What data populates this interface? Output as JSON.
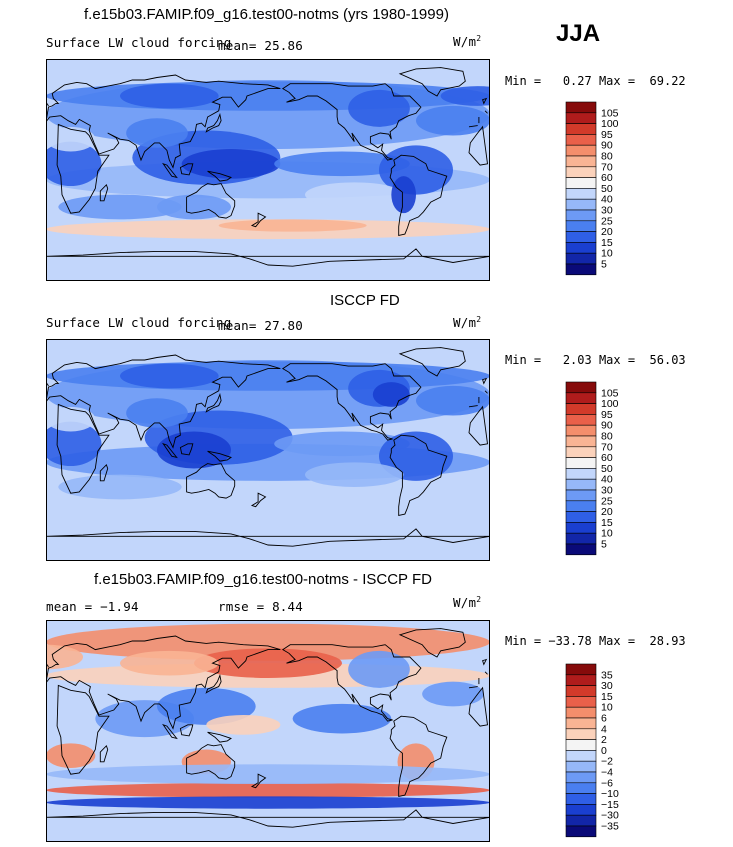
{
  "season": "JJA",
  "panels": [
    {
      "title": "f.e15b03.FAMIP.f09_g16.test00-notms (yrs 1980-1999)",
      "variable": "Surface LW cloud forcing",
      "mean_text": "mean=  25.86",
      "units": "W/m",
      "units_exp": "2",
      "min_label": "Min =",
      "min_value": "0.27",
      "max_label": "Max =",
      "max_value": "69.22"
    },
    {
      "title": "ISCCP FD",
      "variable": "Surface LW cloud forcing",
      "mean_text": "mean=  27.80",
      "units": "W/m",
      "units_exp": "2",
      "min_label": "Min =",
      "min_value": "2.03",
      "max_label": "Max =",
      "max_value": "56.03"
    },
    {
      "title": "f.e15b03.FAMIP.f09_g16.test00-notms - ISCCP FD",
      "mean_text": "mean =  −1.94",
      "rmse_text": "rmse =   8.44",
      "units": "W/m",
      "units_exp": "2",
      "min_label": "Min =",
      "min_value": "−33.78",
      "max_label": "Max =",
      "max_value": "28.93"
    }
  ],
  "chart_data": [
    {
      "type": "heatmap",
      "title": "f.e15b03.FAMIP.f09_g16.test00-notms (yrs 1980-1999)",
      "subtitle": "Surface LW cloud forcing",
      "season": "JJA",
      "units": "W/m2",
      "mean": 25.86,
      "min": 0.27,
      "max": 69.22,
      "colorbar_levels": [
        5,
        10,
        15,
        20,
        25,
        30,
        40,
        50,
        60,
        70,
        80,
        90,
        95,
        100,
        105
      ],
      "colorbar_colors": [
        "#0a0a78",
        "#1226a8",
        "#1a3fd0",
        "#2f5fe6",
        "#4a7ff0",
        "#6d9af5",
        "#96b8f8",
        "#c2d6fb",
        "#f4f4f4",
        "#fbd2bb",
        "#f9b494",
        "#f48e6c",
        "#e9604a",
        "#d23a2a",
        "#b01c1c",
        "#860b0b"
      ],
      "colorbar_labels": [
        "105",
        "100",
        "95",
        "90",
        "80",
        "70",
        "60",
        "50",
        "40",
        "30",
        "25",
        "20",
        "15",
        "10",
        "5"
      ]
    },
    {
      "type": "heatmap",
      "title": "ISCCP FD",
      "subtitle": "Surface LW cloud forcing",
      "units": "W/m2",
      "mean": 27.8,
      "min": 2.03,
      "max": 56.03,
      "colorbar_levels": [
        5,
        10,
        15,
        20,
        25,
        30,
        40,
        50,
        60,
        70,
        80,
        90,
        95,
        100,
        105
      ],
      "colorbar_colors": [
        "#0a0a78",
        "#1226a8",
        "#1a3fd0",
        "#2f5fe6",
        "#4a7ff0",
        "#6d9af5",
        "#96b8f8",
        "#c2d6fb",
        "#f4f4f4",
        "#fbd2bb",
        "#f9b494",
        "#f48e6c",
        "#e9604a",
        "#d23a2a",
        "#b01c1c",
        "#860b0b"
      ],
      "colorbar_labels": [
        "105",
        "100",
        "95",
        "90",
        "80",
        "70",
        "60",
        "50",
        "40",
        "30",
        "25",
        "20",
        "15",
        "10",
        "5"
      ]
    },
    {
      "type": "heatmap",
      "title": "f.e15b03.FAMIP.f09_g16.test00-notms - ISCCP FD",
      "units": "W/m2",
      "mean": -1.94,
      "rmse": 8.44,
      "min": -33.78,
      "max": 28.93,
      "colorbar_levels": [
        -35,
        -30,
        -15,
        -10,
        -6,
        -4,
        -2,
        0,
        2,
        4,
        6,
        10,
        15,
        30,
        35
      ],
      "colorbar_colors": [
        "#0a0a78",
        "#1226a8",
        "#1a3fd0",
        "#2f5fe6",
        "#4a7ff0",
        "#6d9af5",
        "#96b8f8",
        "#c2d6fb",
        "#f4f4f4",
        "#fbd2bb",
        "#f9b494",
        "#f48e6c",
        "#e9604a",
        "#d23a2a",
        "#b01c1c",
        "#860b0b"
      ],
      "colorbar_labels": [
        "35",
        "30",
        "15",
        "10",
        "6",
        "4",
        "2",
        "0",
        "−2",
        "−4",
        "−6",
        "−10",
        "−15",
        "−30",
        "−35"
      ]
    }
  ]
}
